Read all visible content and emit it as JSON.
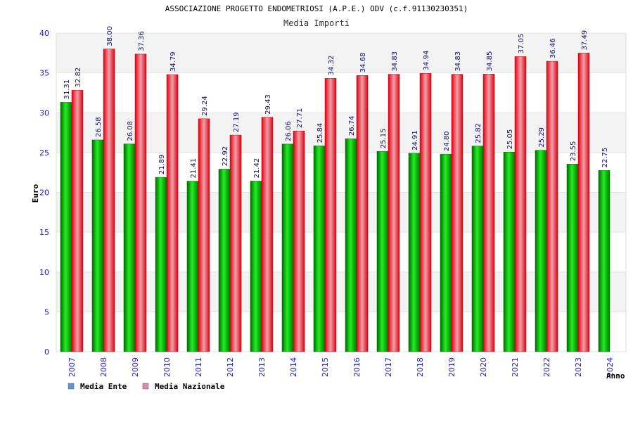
{
  "chart_data": {
    "type": "bar",
    "title": "ASSOCIAZIONE PROGETTO ENDOMETRIOSI (A.P.E.) ODV (c.f.91130230351)",
    "subtitle": "Media Importi",
    "xlabel": "Anno",
    "ylabel": "Euro",
    "ylim": [
      0,
      40
    ],
    "yticks": [
      "0",
      "5",
      "10",
      "15",
      "20",
      "25",
      "30",
      "35",
      "40"
    ],
    "grid": true,
    "legend_position": "bottom-left",
    "categories": [
      "2007",
      "2008",
      "2009",
      "2010",
      "2011",
      "2012",
      "2013",
      "2014",
      "2015",
      "2016",
      "2017",
      "2018",
      "2019",
      "2020",
      "2021",
      "2022",
      "2023",
      "2024"
    ],
    "series": [
      {
        "name": "Media Ente",
        "color": "#00aa00",
        "legend_color": "#5b9bd5",
        "values": [
          31.31,
          26.58,
          26.08,
          21.89,
          21.41,
          22.92,
          21.42,
          26.06,
          25.84,
          26.74,
          25.15,
          24.91,
          24.8,
          25.82,
          25.05,
          25.29,
          23.55,
          22.75
        ],
        "labels": [
          "31.31",
          "26.58",
          "26.08",
          "21.89",
          "21.41",
          "22.92",
          "21.42",
          "26.06",
          "25.84",
          "26.74",
          "25.15",
          "24.91",
          "24.80",
          "25.82",
          "25.05",
          "25.29",
          "23.55",
          "22.75"
        ]
      },
      {
        "name": "Media Nazionale",
        "color": "#ee1122",
        "legend_color": "#d98cb3",
        "values": [
          32.82,
          38.0,
          37.36,
          34.79,
          29.24,
          27.19,
          29.43,
          27.71,
          34.32,
          34.68,
          34.83,
          34.94,
          34.83,
          34.85,
          37.05,
          36.46,
          37.49,
          null
        ],
        "labels": [
          "32.82",
          "38.00",
          "37.36",
          "34.79",
          "29.24",
          "27.19",
          "29.43",
          "27.71",
          "34.32",
          "34.68",
          "34.83",
          "34.94",
          "34.83",
          "34.85",
          "37.05",
          "36.46",
          "37.49",
          null
        ]
      }
    ]
  }
}
